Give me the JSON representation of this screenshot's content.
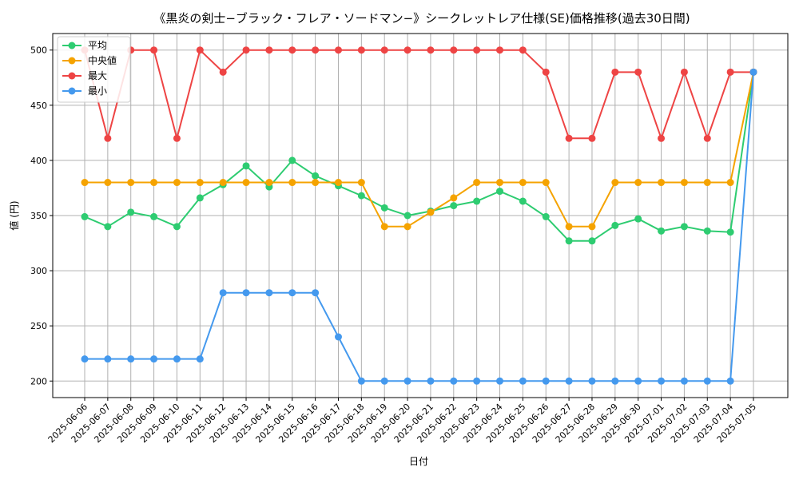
{
  "chart_data": {
    "type": "line",
    "title": "《黒炎の剣士−ブラック・フレア・ソードマン−》シークレットレア仕様(SE)価格推移(過去30日間)",
    "xlabel": "日付",
    "ylabel": "値 (円)",
    "ylim": [
      185,
      515
    ],
    "yticks": [
      200,
      250,
      300,
      350,
      400,
      450,
      500
    ],
    "grid": true,
    "legend_position": "top-left",
    "categories": [
      "2025-06-06",
      "2025-06-07",
      "2025-06-08",
      "2025-06-09",
      "2025-06-10",
      "2025-06-11",
      "2025-06-12",
      "2025-06-13",
      "2025-06-14",
      "2025-06-15",
      "2025-06-16",
      "2025-06-17",
      "2025-06-18",
      "2025-06-19",
      "2025-06-20",
      "2025-06-21",
      "2025-06-22",
      "2025-06-23",
      "2025-06-24",
      "2025-06-25",
      "2025-06-26",
      "2025-06-27",
      "2025-06-28",
      "2025-06-29",
      "2025-06-30",
      "2025-07-01",
      "2025-07-02",
      "2025-07-03",
      "2025-07-04",
      "2025-07-05"
    ],
    "series": [
      {
        "name": "平均",
        "color": "#2ecc71",
        "values": [
          349,
          340,
          353,
          349,
          340,
          366,
          378,
          395,
          376,
          400,
          386,
          377,
          368,
          357,
          350,
          354,
          359,
          363,
          372,
          363,
          349,
          327,
          327,
          341,
          347,
          336,
          340,
          336,
          335,
          480
        ]
      },
      {
        "name": "中央値",
        "color": "#f5a300",
        "values": [
          380,
          380,
          380,
          380,
          380,
          380,
          380,
          380,
          380,
          380,
          380,
          380,
          380,
          340,
          340,
          353,
          366,
          380,
          380,
          380,
          380,
          340,
          340,
          380,
          380,
          380,
          380,
          380,
          380,
          480
        ]
      },
      {
        "name": "最大",
        "color": "#ee4444",
        "values": [
          500,
          420,
          500,
          500,
          420,
          500,
          480,
          500,
          500,
          500,
          500,
          500,
          500,
          500,
          500,
          500,
          500,
          500,
          500,
          500,
          480,
          420,
          420,
          480,
          480,
          420,
          480,
          420,
          480,
          480
        ]
      },
      {
        "name": "最小",
        "color": "#4499ee",
        "values": [
          220,
          220,
          220,
          220,
          220,
          220,
          280,
          280,
          280,
          280,
          280,
          240,
          200,
          200,
          200,
          200,
          200,
          200,
          200,
          200,
          200,
          200,
          200,
          200,
          200,
          200,
          200,
          200,
          200,
          480
        ]
      }
    ]
  }
}
